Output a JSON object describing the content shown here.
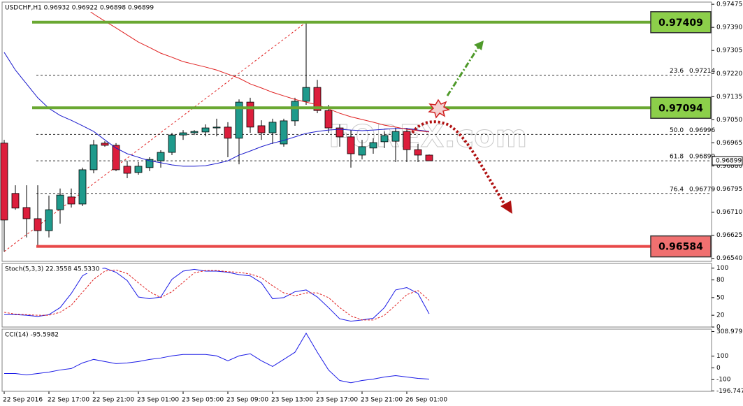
{
  "chart_data": [
    {
      "type": "candlestick",
      "title": "USDCHF,H1 0.96932 0.96922 0.96898 0.96899",
      "watermark": "FOREX.com",
      "categories": [
        "22 Sep 2016",
        null,
        null,
        null,
        "22 Sep 17:00",
        null,
        null,
        null,
        "22 Sep 21:00",
        null,
        null,
        null,
        "23 Sep 01:00",
        null,
        null,
        null,
        "23 Sep 05:00",
        null,
        null,
        null,
        "23 Sep 09:00",
        null,
        null,
        null,
        "23 Sep 13:00",
        null,
        null,
        null,
        "23 Sep 17:00",
        null,
        null,
        null,
        "23 Sep 21:00",
        null,
        null,
        null,
        "26 Sep 01:00",
        null,
        null
      ],
      "open": [
        0.96964,
        0.96779,
        0.96727,
        0.96686,
        0.96642,
        0.96719,
        0.96766,
        0.9674,
        0.96866,
        0.96964,
        0.96956,
        0.96879,
        0.96856,
        0.96874,
        0.96899,
        0.9693,
        0.96994,
        0.97002,
        0.97005,
        0.9702,
        0.97023,
        0.96982,
        0.97115,
        0.97028,
        0.97002,
        0.96961,
        0.97046,
        0.97118,
        0.97169,
        0.97084,
        0.9702,
        0.96987,
        0.9692,
        0.96946,
        0.96969,
        0.96971,
        0.97007,
        0.9694,
        0.9692
      ],
      "high": [
        0.96976,
        0.96809,
        0.96809,
        0.96809,
        0.96771,
        0.96797,
        0.96797,
        0.96874,
        0.96976,
        0.96971,
        0.96964,
        0.96899,
        0.96894,
        0.96912,
        0.96938,
        0.97002,
        0.97012,
        0.97012,
        0.97033,
        0.97054,
        0.97041,
        0.97125,
        0.97131,
        0.97048,
        0.97054,
        0.97054,
        0.97131,
        0.97409,
        0.97197,
        0.97105,
        0.97033,
        0.97012,
        0.96976,
        0.96982,
        0.97007,
        0.9702,
        0.9702,
        0.96961,
        0.96922
      ],
      "low": [
        0.96565,
        0.96719,
        0.96617,
        0.96584,
        0.96617,
        0.96668,
        0.96727,
        0.96732,
        0.96853,
        0.96951,
        0.96861,
        0.96835,
        0.96848,
        0.96861,
        0.96874,
        0.9692,
        0.96976,
        0.96994,
        0.96989,
        0.96989,
        0.96912,
        0.96886,
        0.97002,
        0.96976,
        0.96961,
        0.96951,
        0.97028,
        0.97105,
        0.97074,
        0.97002,
        0.96951,
        0.96874,
        0.96904,
        0.96925,
        0.96946,
        0.96894,
        0.96894,
        0.96894,
        0.96898
      ],
      "close": [
        0.96681,
        0.96725,
        0.96686,
        0.96642,
        0.96719,
        0.96773,
        0.9674,
        0.96866,
        0.96958,
        0.96956,
        0.96866,
        0.96853,
        0.96879,
        0.96904,
        0.9693,
        0.96994,
        0.97002,
        0.97007,
        0.9702,
        0.97023,
        0.96982,
        0.97115,
        0.97023,
        0.97002,
        0.97041,
        0.97046,
        0.97118,
        0.97169,
        0.97084,
        0.9702,
        0.96987,
        0.96925,
        0.96951,
        0.96966,
        0.96992,
        0.97007,
        0.9694,
        0.9692,
        0.96899
      ],
      "up_color": "#1f9a8c",
      "down_color": "#dc1e3c",
      "overlays": [
        {
          "color": "#1a1acc",
          "values": [
            0.97298,
            0.97233,
            0.97182,
            0.97131,
            0.97092,
            0.97066,
            0.97048,
            0.97028,
            0.97007,
            0.96976,
            0.96946,
            0.96925,
            0.96912,
            0.96899,
            0.96892,
            0.96884,
            0.96879,
            0.96879,
            0.96881,
            0.96889,
            0.96899,
            0.9692,
            0.96935,
            0.96951,
            0.96964,
            0.96974,
            0.96987,
            0.97,
            0.97007,
            0.97012,
            0.97015,
            0.97012,
            0.9701,
            0.97012,
            0.97015,
            0.97018,
            0.97018,
            0.97012,
            0.97007
          ]
        },
        {
          "color": "#e02020",
          "values": [
            null,
            null,
            null,
            null,
            null,
            null,
            null,
            0.9747,
            0.97439,
            0.97413,
            0.97388,
            0.97362,
            0.97336,
            0.97316,
            0.97295,
            0.9728,
            0.97264,
            0.97254,
            0.97244,
            0.97233,
            0.97218,
            0.97203,
            0.97182,
            0.97167,
            0.97151,
            0.97138,
            0.97125,
            0.97115,
            0.97105,
            0.9709,
            0.97074,
            0.97061,
            0.97051,
            0.97041,
            0.9703,
            0.97023,
            0.97015,
            0.9701,
            0.97005
          ]
        }
      ],
      "levels": [
        {
          "value": 0.97409,
          "color": "#6aa832",
          "box_color": "#8ccf4a"
        },
        {
          "value": 0.97094,
          "color": "#6aa832",
          "box_color": "#8ccf4a"
        },
        {
          "value": 0.96584,
          "color": "#e84848",
          "box_color": "#f07070"
        }
      ],
      "fib_levels": [
        {
          "ratio": "23.6",
          "value": 0.97214
        },
        {
          "ratio": "50.0",
          "value": 0.96996
        },
        {
          "ratio": "61.8",
          "value": 0.96899
        },
        {
          "ratio": "76.4",
          "value": 0.96779
        }
      ],
      "last_price": 0.96899,
      "ylim": [
        0.96529,
        0.97483
      ],
      "yticks": [
        0.97475,
        {
          "value": 0.9739,
          "label": "0.97390"
        },
        0.97305,
        {
          "value": 0.9722,
          "label": "0.97220"
        },
        0.97135,
        {
          "value": 0.9705,
          "label": "0.97050"
        },
        0.96965,
        {
          "value": 0.9688,
          "label": "0.96880"
        },
        0.96795,
        {
          "value": 0.9671,
          "label": "0.96710"
        },
        0.96625,
        {
          "value": 0.9654,
          "label": "0.96540"
        }
      ]
    },
    {
      "type": "line",
      "title": "Stoch(5,3,3) 22.3558 45.5330",
      "series": [
        {
          "color": "#1a1ae6",
          "dash": false,
          "values": [
            21,
            21,
            20,
            18,
            21,
            33,
            57,
            87,
            98,
            100,
            93,
            79,
            51,
            48,
            51,
            81,
            95,
            98,
            95,
            95,
            93,
            89,
            87,
            75,
            48,
            50,
            60,
            63,
            51,
            33,
            14,
            10,
            12,
            15,
            33,
            63,
            67,
            57,
            22.3558
          ]
        },
        {
          "color": "#e02020",
          "dash": true,
          "values": [
            25,
            22,
            21,
            20,
            20,
            25,
            37,
            59,
            81,
            95,
            97,
            91,
            75,
            60,
            50,
            60,
            76,
            92,
            96,
            96,
            94,
            93,
            90,
            84,
            70,
            58,
            53,
            58,
            58,
            50,
            33,
            19,
            12,
            12,
            20,
            37,
            55,
            62,
            45.533
          ]
        }
      ],
      "ylim": [
        0,
        108
      ],
      "yticks": [
        100,
        80,
        50,
        20,
        0
      ]
    },
    {
      "type": "line",
      "title": "CCI(14) -95.5982",
      "series": [
        {
          "color": "#1a1ae6",
          "dash": false,
          "values": [
            -48,
            -48,
            -60,
            -48,
            -36,
            -18,
            -6,
            42,
            72,
            54,
            36,
            42,
            54,
            72,
            84,
            102,
            114,
            114,
            114,
            102,
            60,
            102,
            120,
            60,
            12,
            72,
            133,
            295,
            133,
            -18,
            -108,
            -127,
            -108,
            -96,
            -78,
            -66,
            -78,
            -90,
            -95.5982
          ]
        }
      ],
      "ylim": [
        -200,
        330
      ],
      "yticks": [
        308.9793,
        100,
        0,
        -100,
        -196.7478
      ]
    }
  ]
}
